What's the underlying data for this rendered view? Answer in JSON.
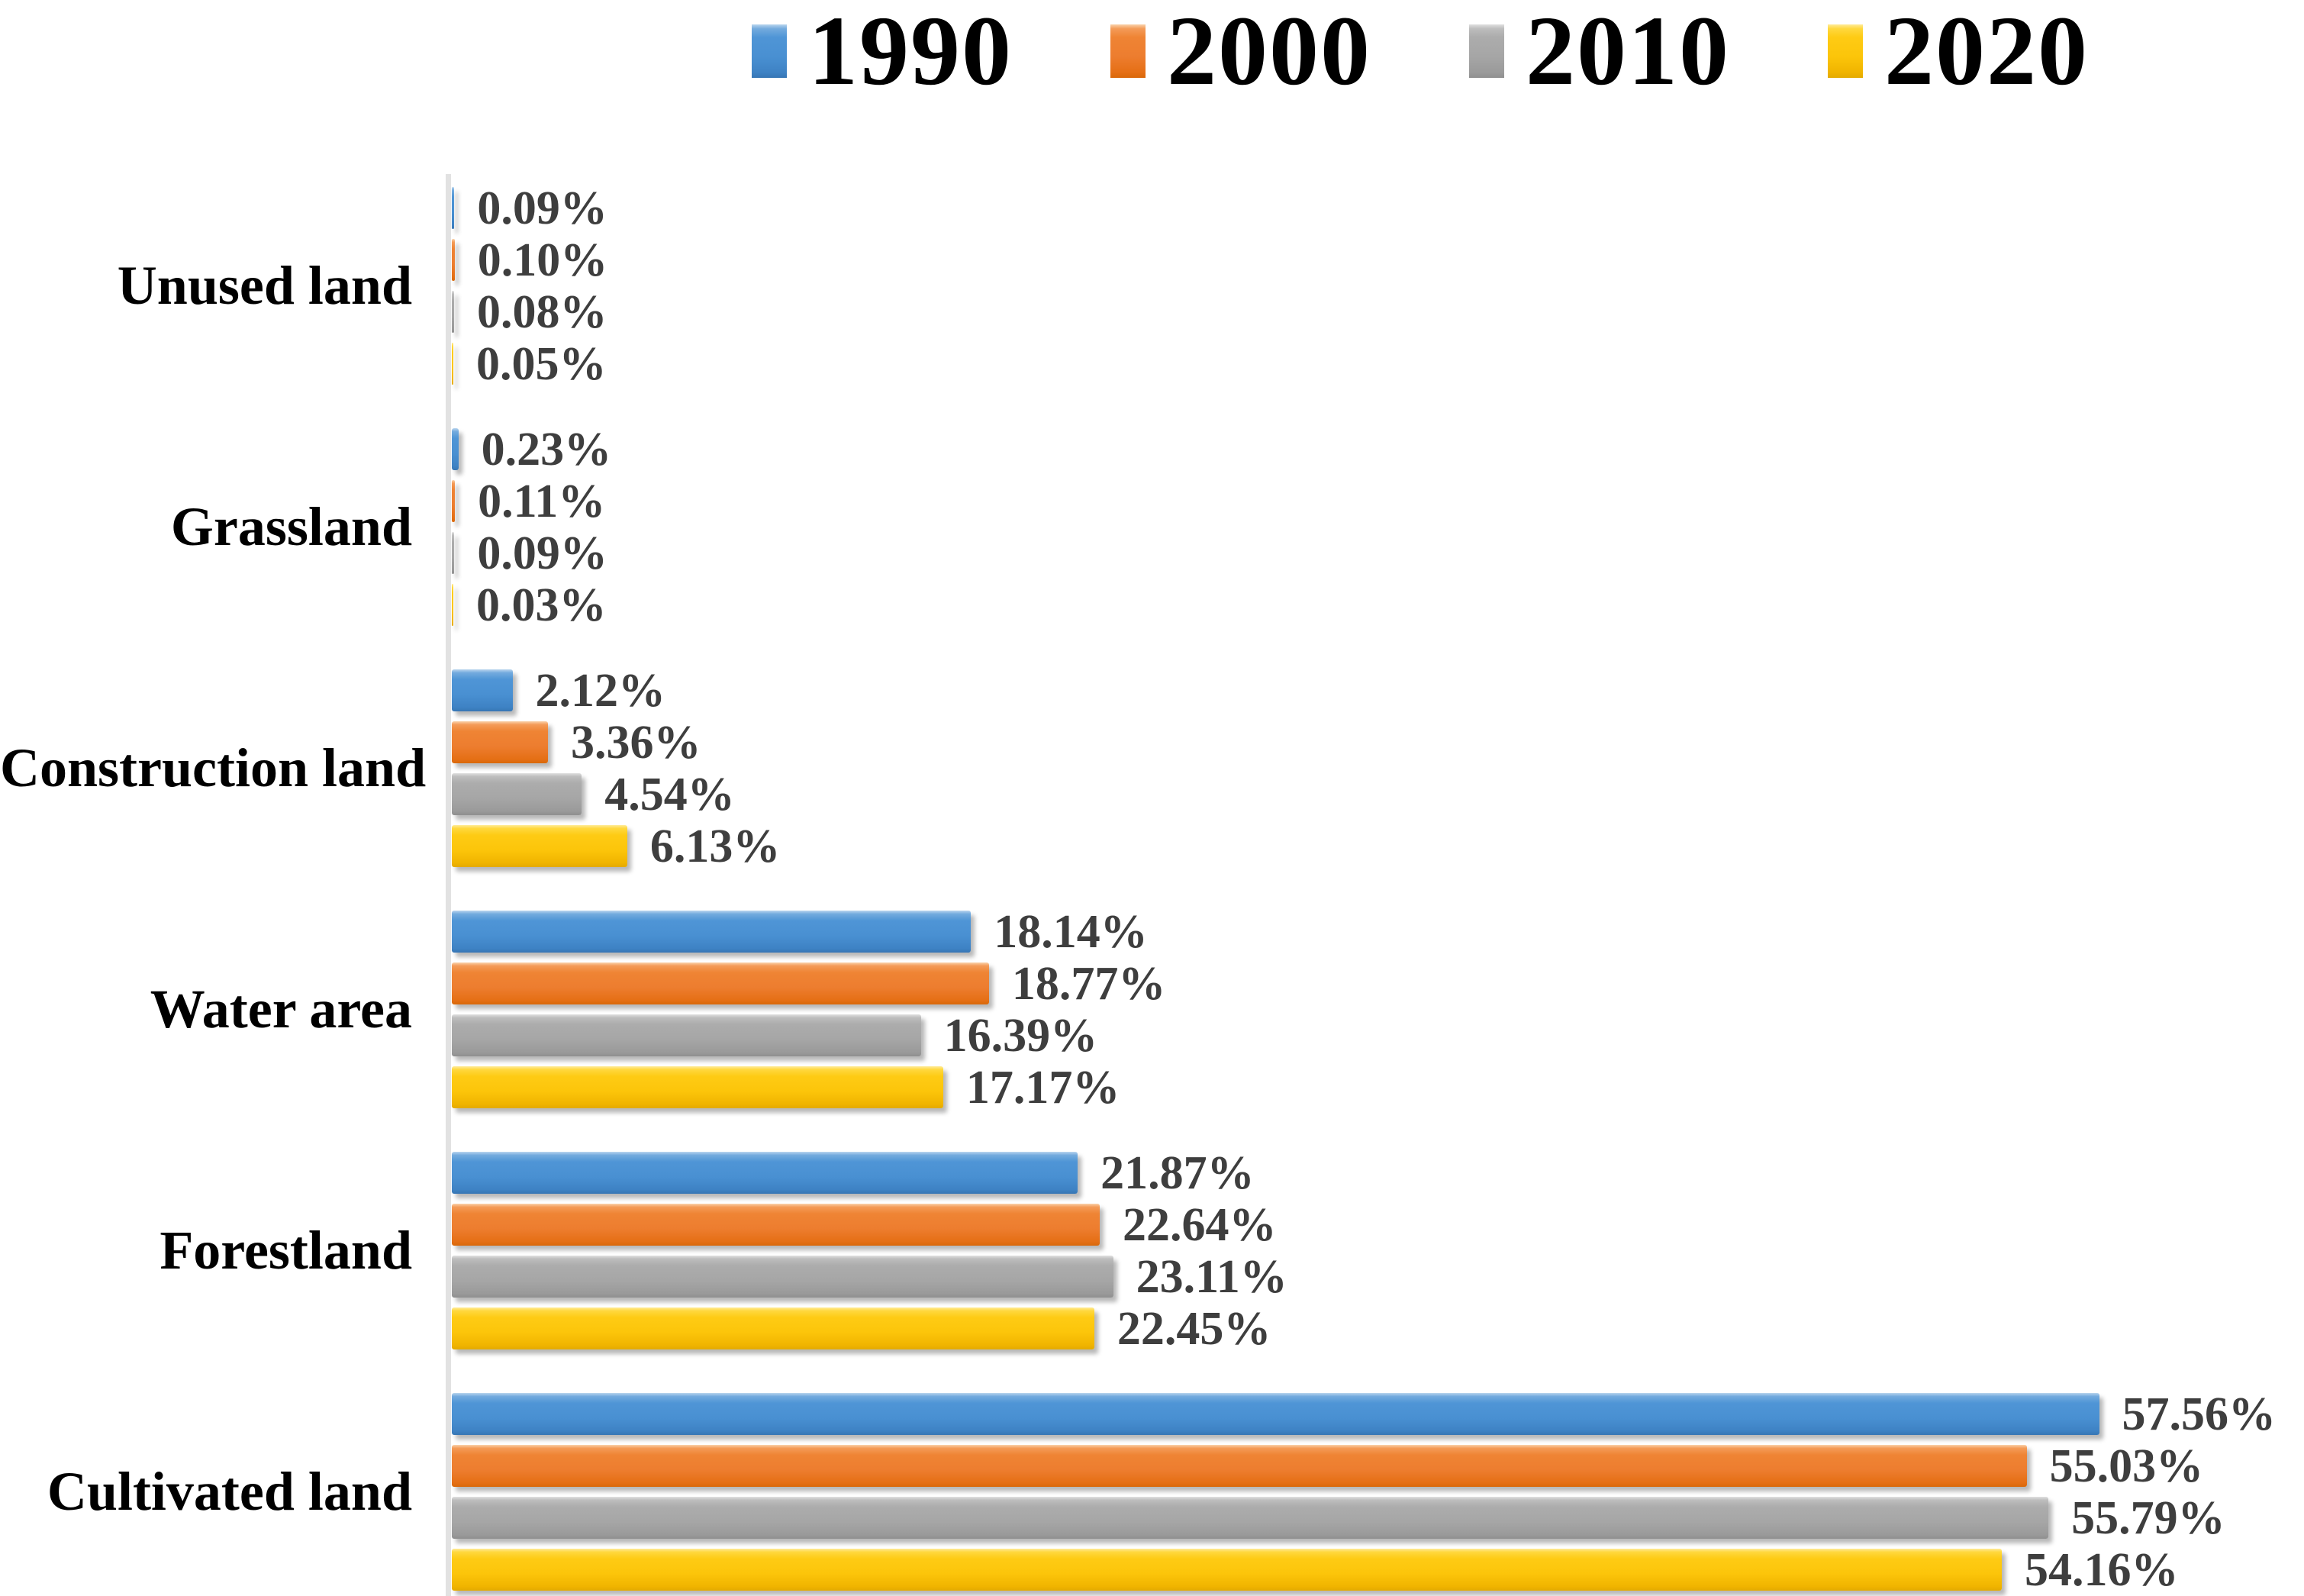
{
  "chart_data": {
    "type": "bar",
    "orientation": "horizontal",
    "title": "",
    "xlabel": "",
    "ylabel": "",
    "xlim": [
      0,
      64.5
    ],
    "grid": false,
    "legend_position": "top",
    "value_label_format": "0.00%",
    "categories": [
      "Unused land",
      "Grassland",
      "Construction land",
      "Water area",
      "Forestland",
      "Cultivated land"
    ],
    "series": [
      {
        "name": "1990",
        "color": "#4990D2",
        "values": [
          0.09,
          0.23,
          2.12,
          18.14,
          21.87,
          57.56
        ],
        "labels": [
          "0.09%",
          "0.23%",
          "2.12%",
          "18.14%",
          "21.87%",
          "57.56%"
        ]
      },
      {
        "name": "2000",
        "color": "#ED7D2F",
        "values": [
          0.1,
          0.11,
          3.36,
          18.77,
          22.64,
          55.03
        ],
        "labels": [
          "0.10%",
          "0.11%",
          "3.36%",
          "18.77%",
          "22.64%",
          "55.03%"
        ]
      },
      {
        "name": "2010",
        "color": "#A6A6A6",
        "values": [
          0.08,
          0.09,
          4.54,
          16.39,
          23.11,
          55.79
        ],
        "labels": [
          "0.08%",
          "0.09%",
          "4.54%",
          "16.39%",
          "23.11%",
          "55.79%"
        ]
      },
      {
        "name": "2020",
        "color": "#FCC50A",
        "values": [
          0.05,
          0.03,
          6.13,
          17.17,
          22.45,
          54.16
        ],
        "labels": [
          "0.05%",
          "0.03%",
          "6.13%",
          "17.17%",
          "22.45%",
          "54.16%"
        ]
      }
    ],
    "colors": {
      "value_label_text": "#3E3E3E",
      "category_label_text": "#000000",
      "legend_text": "#000000",
      "axis_line": "#E2E2E2",
      "background": "#FFFFFF"
    }
  }
}
